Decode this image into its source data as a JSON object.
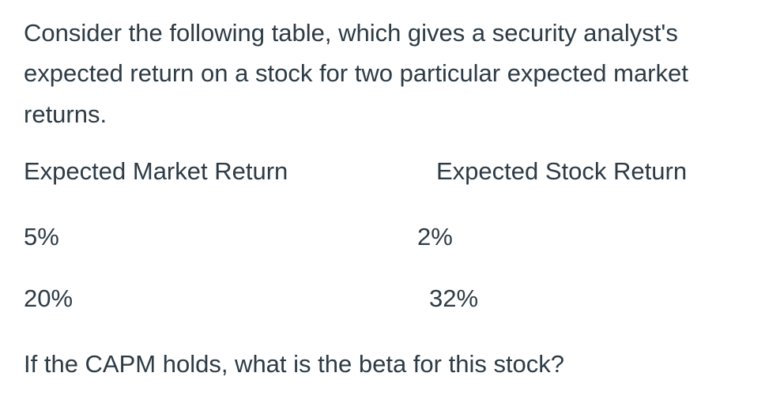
{
  "page": {
    "background_color": "#ffffff",
    "text_color": "#2d3b45"
  },
  "question": {
    "intro_lines": [
      "Consider the following table, which gives a security analyst's",
      "expected return on a stock for two particular expected market",
      "returns."
    ],
    "table": {
      "column_headers": [
        "Expected Market Return",
        "Expected Stock Return"
      ],
      "rows": [
        {
          "expected_market_return": "5%",
          "expected_stock_return": "2%"
        },
        {
          "expected_market_return": "20%",
          "expected_stock_return": "32%"
        }
      ]
    },
    "prompt": "If the CAPM holds, what is the beta for this stock?"
  }
}
